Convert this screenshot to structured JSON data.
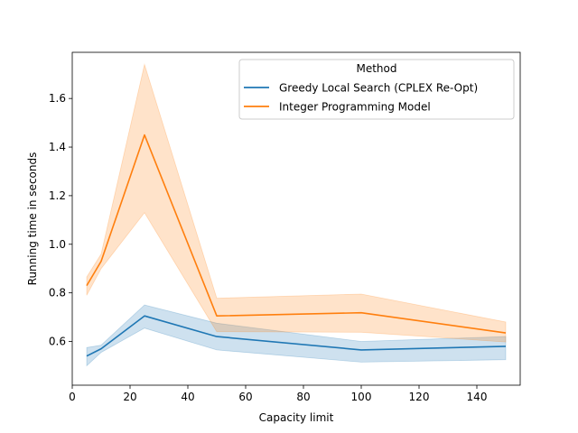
{
  "chart_data": {
    "type": "line",
    "xlabel": "Capacity limit",
    "ylabel": "Running time in seconds",
    "xlim": [
      0,
      155
    ],
    "ylim": [
      0.42,
      1.79
    ],
    "xticks": [
      0,
      20,
      40,
      60,
      80,
      100,
      120,
      140
    ],
    "yticks": [
      0.6,
      0.8,
      1.0,
      1.2,
      1.4,
      1.6
    ],
    "xtick_labels": [
      "0",
      "20",
      "40",
      "60",
      "80",
      "100",
      "120",
      "140"
    ],
    "ytick_labels": [
      "0.6",
      "0.8",
      "1.0",
      "1.2",
      "1.4",
      "1.6"
    ],
    "grid": false,
    "legend": {
      "title": "Method",
      "position": "upper-right"
    },
    "x": [
      5,
      10,
      25,
      50,
      100,
      150
    ],
    "series": [
      {
        "name": "Greedy Local Search (CPLEX Re-Opt)",
        "color": "#1f77b4",
        "values": [
          0.54,
          0.57,
          0.705,
          0.62,
          0.565,
          0.58
        ],
        "ci_lower": [
          0.5,
          0.555,
          0.655,
          0.565,
          0.515,
          0.525
        ],
        "ci_upper": [
          0.575,
          0.585,
          0.75,
          0.675,
          0.6,
          0.62
        ]
      },
      {
        "name": "Integer Programming Model",
        "color": "#ff7f0e",
        "values": [
          0.83,
          0.93,
          1.45,
          0.705,
          0.718,
          0.635
        ],
        "ci_lower": [
          0.79,
          0.9,
          1.13,
          0.64,
          0.638,
          0.598
        ],
        "ci_upper": [
          0.865,
          0.96,
          1.74,
          0.778,
          0.795,
          0.68
        ]
      }
    ]
  }
}
